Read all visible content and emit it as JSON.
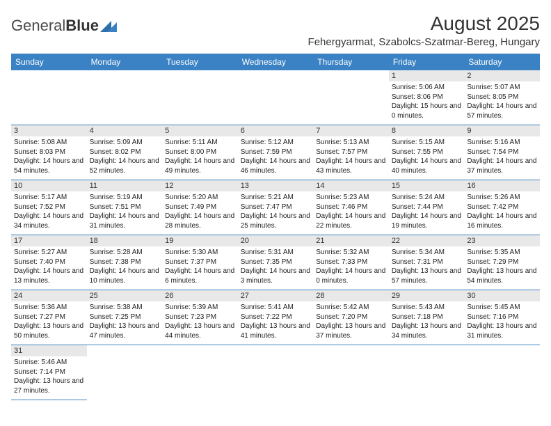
{
  "logo": {
    "text1": "General",
    "text2": "Blue"
  },
  "title": "August 2025",
  "location": "Fehergyarmat, Szabolcs-Szatmar-Bereg, Hungary",
  "colors": {
    "header_bg": "#3b82c4",
    "header_text": "#ffffff",
    "daynum_bg": "#e8e8e8",
    "text": "#222222",
    "rule": "#3b82c4"
  },
  "fonts": {
    "title_size": 28,
    "location_size": 15,
    "dayhead_size": 12,
    "daynum_size": 11,
    "body_size": 10
  },
  "dayHeaders": [
    "Sunday",
    "Monday",
    "Tuesday",
    "Wednesday",
    "Thursday",
    "Friday",
    "Saturday"
  ],
  "weeks": [
    [
      {
        "n": "",
        "sr": "",
        "ss": "",
        "dl": ""
      },
      {
        "n": "",
        "sr": "",
        "ss": "",
        "dl": ""
      },
      {
        "n": "",
        "sr": "",
        "ss": "",
        "dl": ""
      },
      {
        "n": "",
        "sr": "",
        "ss": "",
        "dl": ""
      },
      {
        "n": "",
        "sr": "",
        "ss": "",
        "dl": ""
      },
      {
        "n": "1",
        "sr": "Sunrise: 5:06 AM",
        "ss": "Sunset: 8:06 PM",
        "dl": "Daylight: 15 hours and 0 minutes."
      },
      {
        "n": "2",
        "sr": "Sunrise: 5:07 AM",
        "ss": "Sunset: 8:05 PM",
        "dl": "Daylight: 14 hours and 57 minutes."
      }
    ],
    [
      {
        "n": "3",
        "sr": "Sunrise: 5:08 AM",
        "ss": "Sunset: 8:03 PM",
        "dl": "Daylight: 14 hours and 54 minutes."
      },
      {
        "n": "4",
        "sr": "Sunrise: 5:09 AM",
        "ss": "Sunset: 8:02 PM",
        "dl": "Daylight: 14 hours and 52 minutes."
      },
      {
        "n": "5",
        "sr": "Sunrise: 5:11 AM",
        "ss": "Sunset: 8:00 PM",
        "dl": "Daylight: 14 hours and 49 minutes."
      },
      {
        "n": "6",
        "sr": "Sunrise: 5:12 AM",
        "ss": "Sunset: 7:59 PM",
        "dl": "Daylight: 14 hours and 46 minutes."
      },
      {
        "n": "7",
        "sr": "Sunrise: 5:13 AM",
        "ss": "Sunset: 7:57 PM",
        "dl": "Daylight: 14 hours and 43 minutes."
      },
      {
        "n": "8",
        "sr": "Sunrise: 5:15 AM",
        "ss": "Sunset: 7:55 PM",
        "dl": "Daylight: 14 hours and 40 minutes."
      },
      {
        "n": "9",
        "sr": "Sunrise: 5:16 AM",
        "ss": "Sunset: 7:54 PM",
        "dl": "Daylight: 14 hours and 37 minutes."
      }
    ],
    [
      {
        "n": "10",
        "sr": "Sunrise: 5:17 AM",
        "ss": "Sunset: 7:52 PM",
        "dl": "Daylight: 14 hours and 34 minutes."
      },
      {
        "n": "11",
        "sr": "Sunrise: 5:19 AM",
        "ss": "Sunset: 7:51 PM",
        "dl": "Daylight: 14 hours and 31 minutes."
      },
      {
        "n": "12",
        "sr": "Sunrise: 5:20 AM",
        "ss": "Sunset: 7:49 PM",
        "dl": "Daylight: 14 hours and 28 minutes."
      },
      {
        "n": "13",
        "sr": "Sunrise: 5:21 AM",
        "ss": "Sunset: 7:47 PM",
        "dl": "Daylight: 14 hours and 25 minutes."
      },
      {
        "n": "14",
        "sr": "Sunrise: 5:23 AM",
        "ss": "Sunset: 7:46 PM",
        "dl": "Daylight: 14 hours and 22 minutes."
      },
      {
        "n": "15",
        "sr": "Sunrise: 5:24 AM",
        "ss": "Sunset: 7:44 PM",
        "dl": "Daylight: 14 hours and 19 minutes."
      },
      {
        "n": "16",
        "sr": "Sunrise: 5:26 AM",
        "ss": "Sunset: 7:42 PM",
        "dl": "Daylight: 14 hours and 16 minutes."
      }
    ],
    [
      {
        "n": "17",
        "sr": "Sunrise: 5:27 AM",
        "ss": "Sunset: 7:40 PM",
        "dl": "Daylight: 14 hours and 13 minutes."
      },
      {
        "n": "18",
        "sr": "Sunrise: 5:28 AM",
        "ss": "Sunset: 7:38 PM",
        "dl": "Daylight: 14 hours and 10 minutes."
      },
      {
        "n": "19",
        "sr": "Sunrise: 5:30 AM",
        "ss": "Sunset: 7:37 PM",
        "dl": "Daylight: 14 hours and 6 minutes."
      },
      {
        "n": "20",
        "sr": "Sunrise: 5:31 AM",
        "ss": "Sunset: 7:35 PM",
        "dl": "Daylight: 14 hours and 3 minutes."
      },
      {
        "n": "21",
        "sr": "Sunrise: 5:32 AM",
        "ss": "Sunset: 7:33 PM",
        "dl": "Daylight: 14 hours and 0 minutes."
      },
      {
        "n": "22",
        "sr": "Sunrise: 5:34 AM",
        "ss": "Sunset: 7:31 PM",
        "dl": "Daylight: 13 hours and 57 minutes."
      },
      {
        "n": "23",
        "sr": "Sunrise: 5:35 AM",
        "ss": "Sunset: 7:29 PM",
        "dl": "Daylight: 13 hours and 54 minutes."
      }
    ],
    [
      {
        "n": "24",
        "sr": "Sunrise: 5:36 AM",
        "ss": "Sunset: 7:27 PM",
        "dl": "Daylight: 13 hours and 50 minutes."
      },
      {
        "n": "25",
        "sr": "Sunrise: 5:38 AM",
        "ss": "Sunset: 7:25 PM",
        "dl": "Daylight: 13 hours and 47 minutes."
      },
      {
        "n": "26",
        "sr": "Sunrise: 5:39 AM",
        "ss": "Sunset: 7:23 PM",
        "dl": "Daylight: 13 hours and 44 minutes."
      },
      {
        "n": "27",
        "sr": "Sunrise: 5:41 AM",
        "ss": "Sunset: 7:22 PM",
        "dl": "Daylight: 13 hours and 41 minutes."
      },
      {
        "n": "28",
        "sr": "Sunrise: 5:42 AM",
        "ss": "Sunset: 7:20 PM",
        "dl": "Daylight: 13 hours and 37 minutes."
      },
      {
        "n": "29",
        "sr": "Sunrise: 5:43 AM",
        "ss": "Sunset: 7:18 PM",
        "dl": "Daylight: 13 hours and 34 minutes."
      },
      {
        "n": "30",
        "sr": "Sunrise: 5:45 AM",
        "ss": "Sunset: 7:16 PM",
        "dl": "Daylight: 13 hours and 31 minutes."
      }
    ],
    [
      {
        "n": "31",
        "sr": "Sunrise: 5:46 AM",
        "ss": "Sunset: 7:14 PM",
        "dl": "Daylight: 13 hours and 27 minutes."
      },
      {
        "n": "",
        "sr": "",
        "ss": "",
        "dl": ""
      },
      {
        "n": "",
        "sr": "",
        "ss": "",
        "dl": ""
      },
      {
        "n": "",
        "sr": "",
        "ss": "",
        "dl": ""
      },
      {
        "n": "",
        "sr": "",
        "ss": "",
        "dl": ""
      },
      {
        "n": "",
        "sr": "",
        "ss": "",
        "dl": ""
      },
      {
        "n": "",
        "sr": "",
        "ss": "",
        "dl": ""
      }
    ]
  ]
}
